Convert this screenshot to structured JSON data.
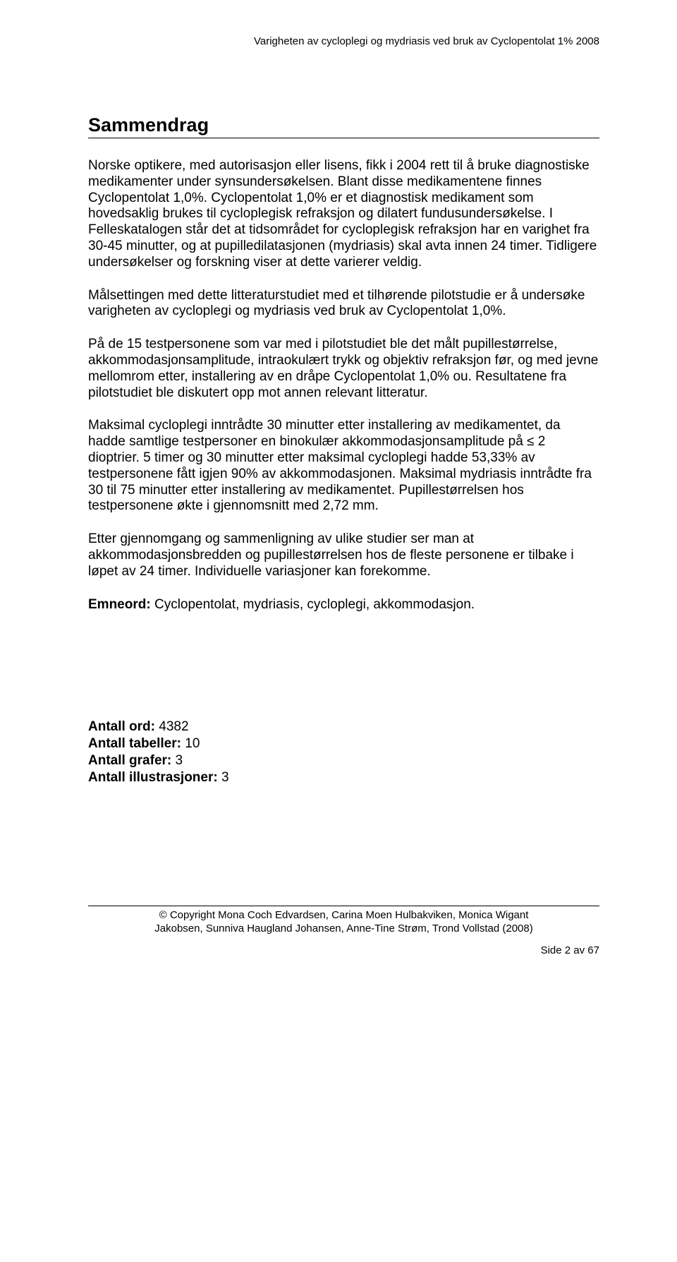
{
  "header": {
    "running_title": "Varigheten av cycloplegi og mydriasis ved bruk av Cyclopentolat 1% 2008"
  },
  "title": "Sammendrag",
  "paragraphs": [
    "Norske optikere, med autorisasjon eller lisens, fikk i 2004 rett til å bruke diagnostiske medikamenter under synsundersøkelsen. Blant disse medikamentene finnes Cyclopentolat 1,0%. Cyclopentolat 1,0% er et diagnostisk medikament som hovedsaklig brukes til cycloplegisk refraksjon og dilatert fundusundersøkelse. I Felleskatalogen står det at tidsområdet for cycloplegisk refraksjon har en varighet fra 30-45 minutter, og at pupilledilatasjonen (mydriasis) skal avta innen 24 timer. Tidligere undersøkelser og forskning viser at dette varierer veldig.",
    "Målsettingen med dette litteraturstudiet med et tilhørende pilotstudie er å undersøke varigheten av cycloplegi og mydriasis ved bruk av Cyclopentolat 1,0%.",
    "På de 15 testpersonene som var med i pilotstudiet ble det målt pupillestørrelse, akkommodasjonsamplitude, intraokulært trykk og objektiv refraksjon før, og med jevne mellomrom etter, installering av en dråpe Cyclopentolat 1,0% ou. Resultatene fra pilotstudiet ble diskutert opp mot annen relevant litteratur.",
    "Maksimal cycloplegi inntrådte 30 minutter etter installering av medikamentet, da hadde samtlige testpersoner en binokulær akkommodasjonsamplitude på ≤ 2 dioptrier. 5 timer og 30 minutter etter maksimal cycloplegi hadde 53,33% av testpersonene fått igjen 90% av akkommodasjonen. Maksimal mydriasis inntrådte fra 30 til 75 minutter etter installering av medikamentet. Pupillestørrelsen hos testpersonene økte i gjennomsnitt med 2,72 mm.",
    "Etter gjennomgang og sammenligning av ulike studier ser man at akkommodasjonsbredden og pupillestørrelsen hos de fleste personene er tilbake i løpet av 24 timer. Individuelle variasjoner kan forekomme."
  ],
  "keywords": {
    "label": "Emneord:",
    "text": "Cyclopentolat, mydriasis, cycloplegi, akkommodasjon."
  },
  "counts": {
    "words_label": "Antall ord:",
    "words_value": "4382",
    "tables_label": "Antall tabeller:",
    "tables_value": "10",
    "graphs_label": "Antall grafer:",
    "graphs_value": "3",
    "illus_label": "Antall illustrasjoner:",
    "illus_value": "3"
  },
  "footer": {
    "line1": "© Copyright Mona Coch Edvardsen, Carina Moen Hulbakviken, Monica Wigant",
    "line2": "Jakobsen, Sunniva Haugland Johansen, Anne-Tine Strøm, Trond Vollstad (2008)"
  },
  "page_number": "Side 2 av 67"
}
